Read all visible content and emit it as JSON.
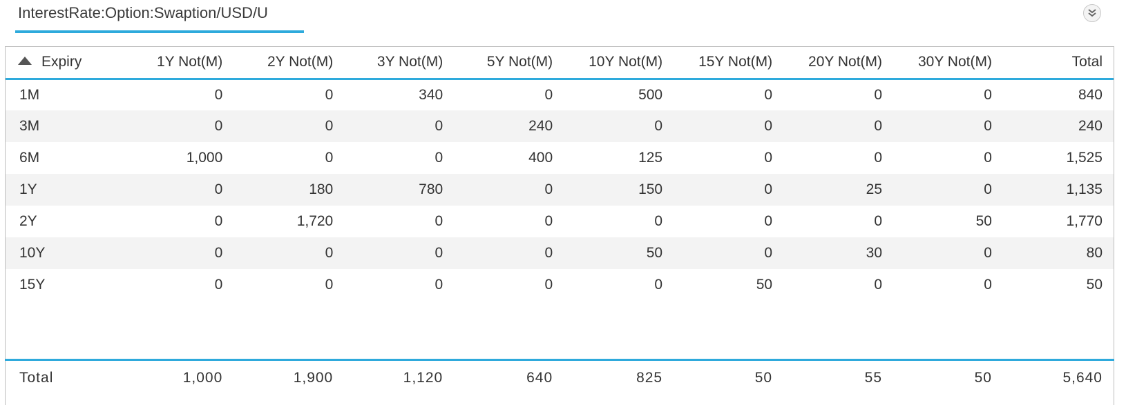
{
  "tab": {
    "title": "InterestRate:Option:Swaption/USD/U"
  },
  "icons": {
    "collapse": "double-chevron-down-icon",
    "sort": "sort-ascending-triangle-icon"
  },
  "colors": {
    "accent": "#2eaadc",
    "stripe": "#f3f3f3"
  },
  "grid": {
    "columns": [
      "Expiry",
      "1Y Not(M)",
      "2Y Not(M)",
      "3Y Not(M)",
      "5Y Not(M)",
      "10Y Not(M)",
      "15Y Not(M)",
      "20Y Not(M)",
      "30Y Not(M)",
      "Total"
    ],
    "sort_column": "Expiry",
    "rows": [
      [
        "1M",
        "0",
        "0",
        "340",
        "0",
        "500",
        "0",
        "0",
        "0",
        "840"
      ],
      [
        "3M",
        "0",
        "0",
        "0",
        "240",
        "0",
        "0",
        "0",
        "0",
        "240"
      ],
      [
        "6M",
        "1,000",
        "0",
        "0",
        "400",
        "125",
        "0",
        "0",
        "0",
        "1,525"
      ],
      [
        "1Y",
        "0",
        "180",
        "780",
        "0",
        "150",
        "0",
        "25",
        "0",
        "1,135"
      ],
      [
        "2Y",
        "0",
        "1,720",
        "0",
        "0",
        "0",
        "0",
        "0",
        "50",
        "1,770"
      ],
      [
        "10Y",
        "0",
        "0",
        "0",
        "0",
        "50",
        "0",
        "30",
        "0",
        "80"
      ],
      [
        "15Y",
        "0",
        "0",
        "0",
        "0",
        "0",
        "50",
        "0",
        "0",
        "50"
      ]
    ],
    "totals": [
      "Total",
      "1,000",
      "1,900",
      "1,120",
      "640",
      "825",
      "50",
      "55",
      "50",
      "5,640"
    ]
  }
}
